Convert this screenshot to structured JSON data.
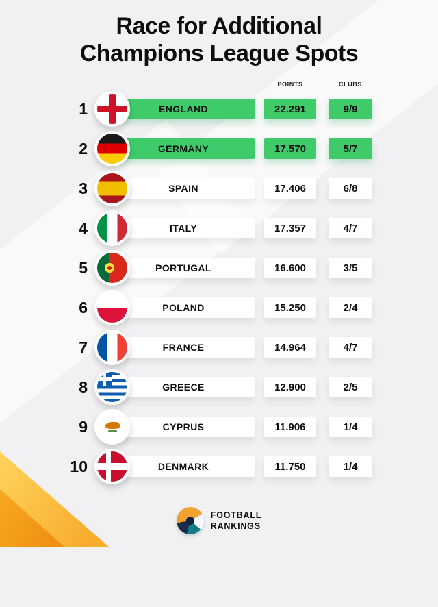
{
  "title": {
    "line1": "Race for Additional",
    "line2": "Champions League Spots"
  },
  "table": {
    "points_header": "POINTS",
    "clubs_header": "CLUBS",
    "rows": [
      {
        "rank": "1",
        "country": "ENGLAND",
        "points": "22.291",
        "clubs": "9/9",
        "highlighted": true
      },
      {
        "rank": "2",
        "country": "GERMANY",
        "points": "17.570",
        "clubs": "5/7",
        "highlighted": true
      },
      {
        "rank": "3",
        "country": "SPAIN",
        "points": "17.406",
        "clubs": "6/8",
        "highlighted": false
      },
      {
        "rank": "4",
        "country": "ITALY",
        "points": "17.357",
        "clubs": "4/7",
        "highlighted": false
      },
      {
        "rank": "5",
        "country": "PORTUGAL",
        "points": "16.600",
        "clubs": "3/5",
        "highlighted": false
      },
      {
        "rank": "6",
        "country": "POLAND",
        "points": "15.250",
        "clubs": "2/4",
        "highlighted": false
      },
      {
        "rank": "7",
        "country": "FRANCE",
        "points": "14.964",
        "clubs": "4/7",
        "highlighted": false
      },
      {
        "rank": "8",
        "country": "GREECE",
        "points": "12.900",
        "clubs": "2/5",
        "highlighted": false
      },
      {
        "rank": "9",
        "country": "CYPRUS",
        "points": "11.906",
        "clubs": "1/4",
        "highlighted": false
      },
      {
        "rank": "10",
        "country": "DENMARK",
        "points": "11.750",
        "clubs": "1/4",
        "highlighted": false
      }
    ]
  },
  "footer": {
    "brand_top": "FOOTBALL",
    "brand_bottom": "RANKINGS"
  },
  "colors": {
    "highlight_green": "#3FCB6A",
    "accent_yellow": "#F8AC2D",
    "background": "#F1F1F3"
  },
  "chart_data": {
    "type": "table",
    "title": "Race for Additional Champions League Spots",
    "columns": [
      "Rank",
      "Country",
      "Points",
      "Clubs"
    ],
    "rows": [
      [
        1,
        "ENGLAND",
        "22.291",
        "9/9"
      ],
      [
        2,
        "GERMANY",
        "17.570",
        "5/7"
      ],
      [
        3,
        "SPAIN",
        "17.406",
        "6/8"
      ],
      [
        4,
        "ITALY",
        "17.357",
        "4/7"
      ],
      [
        5,
        "PORTUGAL",
        "16.600",
        "3/5"
      ],
      [
        6,
        "POLAND",
        "15.250",
        "2/4"
      ],
      [
        7,
        "FRANCE",
        "14.964",
        "4/7"
      ],
      [
        8,
        "GREECE",
        "12.900",
        "2/5"
      ],
      [
        9,
        "CYPRUS",
        "11.906",
        "1/4"
      ],
      [
        10,
        "DENMARK",
        "11.750",
        "1/4"
      ]
    ],
    "highlighted_rows": [
      "ENGLAND",
      "GERMANY"
    ],
    "highlight_color": "#3FCB6A"
  }
}
